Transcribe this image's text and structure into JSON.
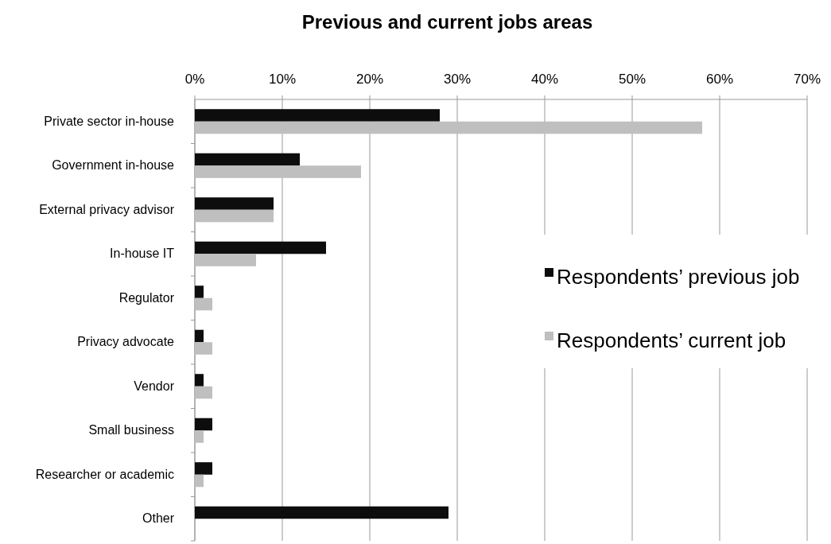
{
  "chart_data": {
    "type": "bar",
    "orientation": "horizontal",
    "title": "Previous and current jobs areas",
    "categories": [
      "Private sector in-house",
      "Government in-house",
      "External privacy advisor",
      "In-house IT",
      "Regulator",
      "Privacy advocate",
      "Vendor",
      "Small business",
      "Researcher or academic",
      "Other"
    ],
    "series": [
      {
        "name": "Respondents’ previous job",
        "color": "#0d0d0d",
        "values": [
          28,
          12,
          9,
          15,
          1,
          1,
          1,
          2,
          2,
          29
        ]
      },
      {
        "name": "Respondents’ current job",
        "color": "#bfbfbf",
        "values": [
          58,
          19,
          9,
          7,
          2,
          2,
          2,
          1,
          1,
          0
        ]
      }
    ],
    "xlim": [
      0,
      70
    ],
    "xticks": [
      {
        "value": 0,
        "label": "0%"
      },
      {
        "value": 10,
        "label": "10%"
      },
      {
        "value": 20,
        "label": "20%"
      },
      {
        "value": 30,
        "label": "30%"
      },
      {
        "value": 40,
        "label": "40%"
      },
      {
        "value": 50,
        "label": "50%"
      },
      {
        "value": 60,
        "label": "60%"
      },
      {
        "value": 70,
        "label": "70%"
      }
    ],
    "grid": "x",
    "legend": "right"
  }
}
